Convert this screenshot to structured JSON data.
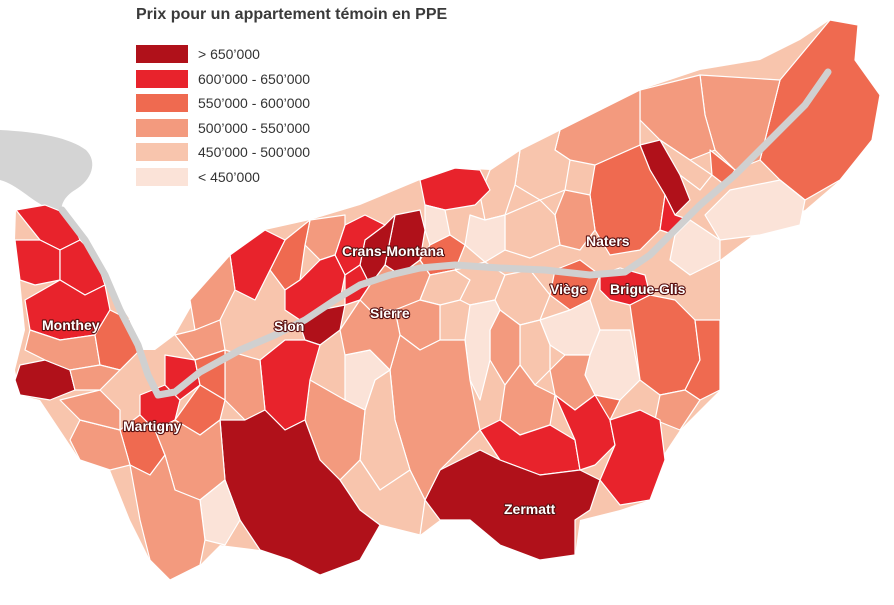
{
  "title": "Prix pour un appartement témoin en PPE",
  "legend": [
    {
      "label": "> 650’000",
      "color": "#b0111a"
    },
    {
      "label": "600’000 - 650’000",
      "color": "#e8232c"
    },
    {
      "label": "550’000 - 600’000",
      "color": "#ef6a50"
    },
    {
      "label": "500’000 - 550’000",
      "color": "#f39a7e"
    },
    {
      "label": "450’000 - 500’000",
      "color": "#f8c5ad"
    },
    {
      "label": "< 450’000",
      "color": "#fbe3d8"
    }
  ],
  "cities": {
    "crans_montana": "Crans-Montana",
    "naters": "Naters",
    "monthey": "Monthey",
    "sion": "Sion",
    "sierre": "Sierre",
    "viege": "Viège",
    "brigue_glis": "Brigue-Glis",
    "martigny": "Martigny",
    "zermatt": "Zermatt"
  },
  "colors": {
    "lake": "#d4d4d4",
    "river": "#d0d0d0",
    "border": "#ffffff"
  }
}
